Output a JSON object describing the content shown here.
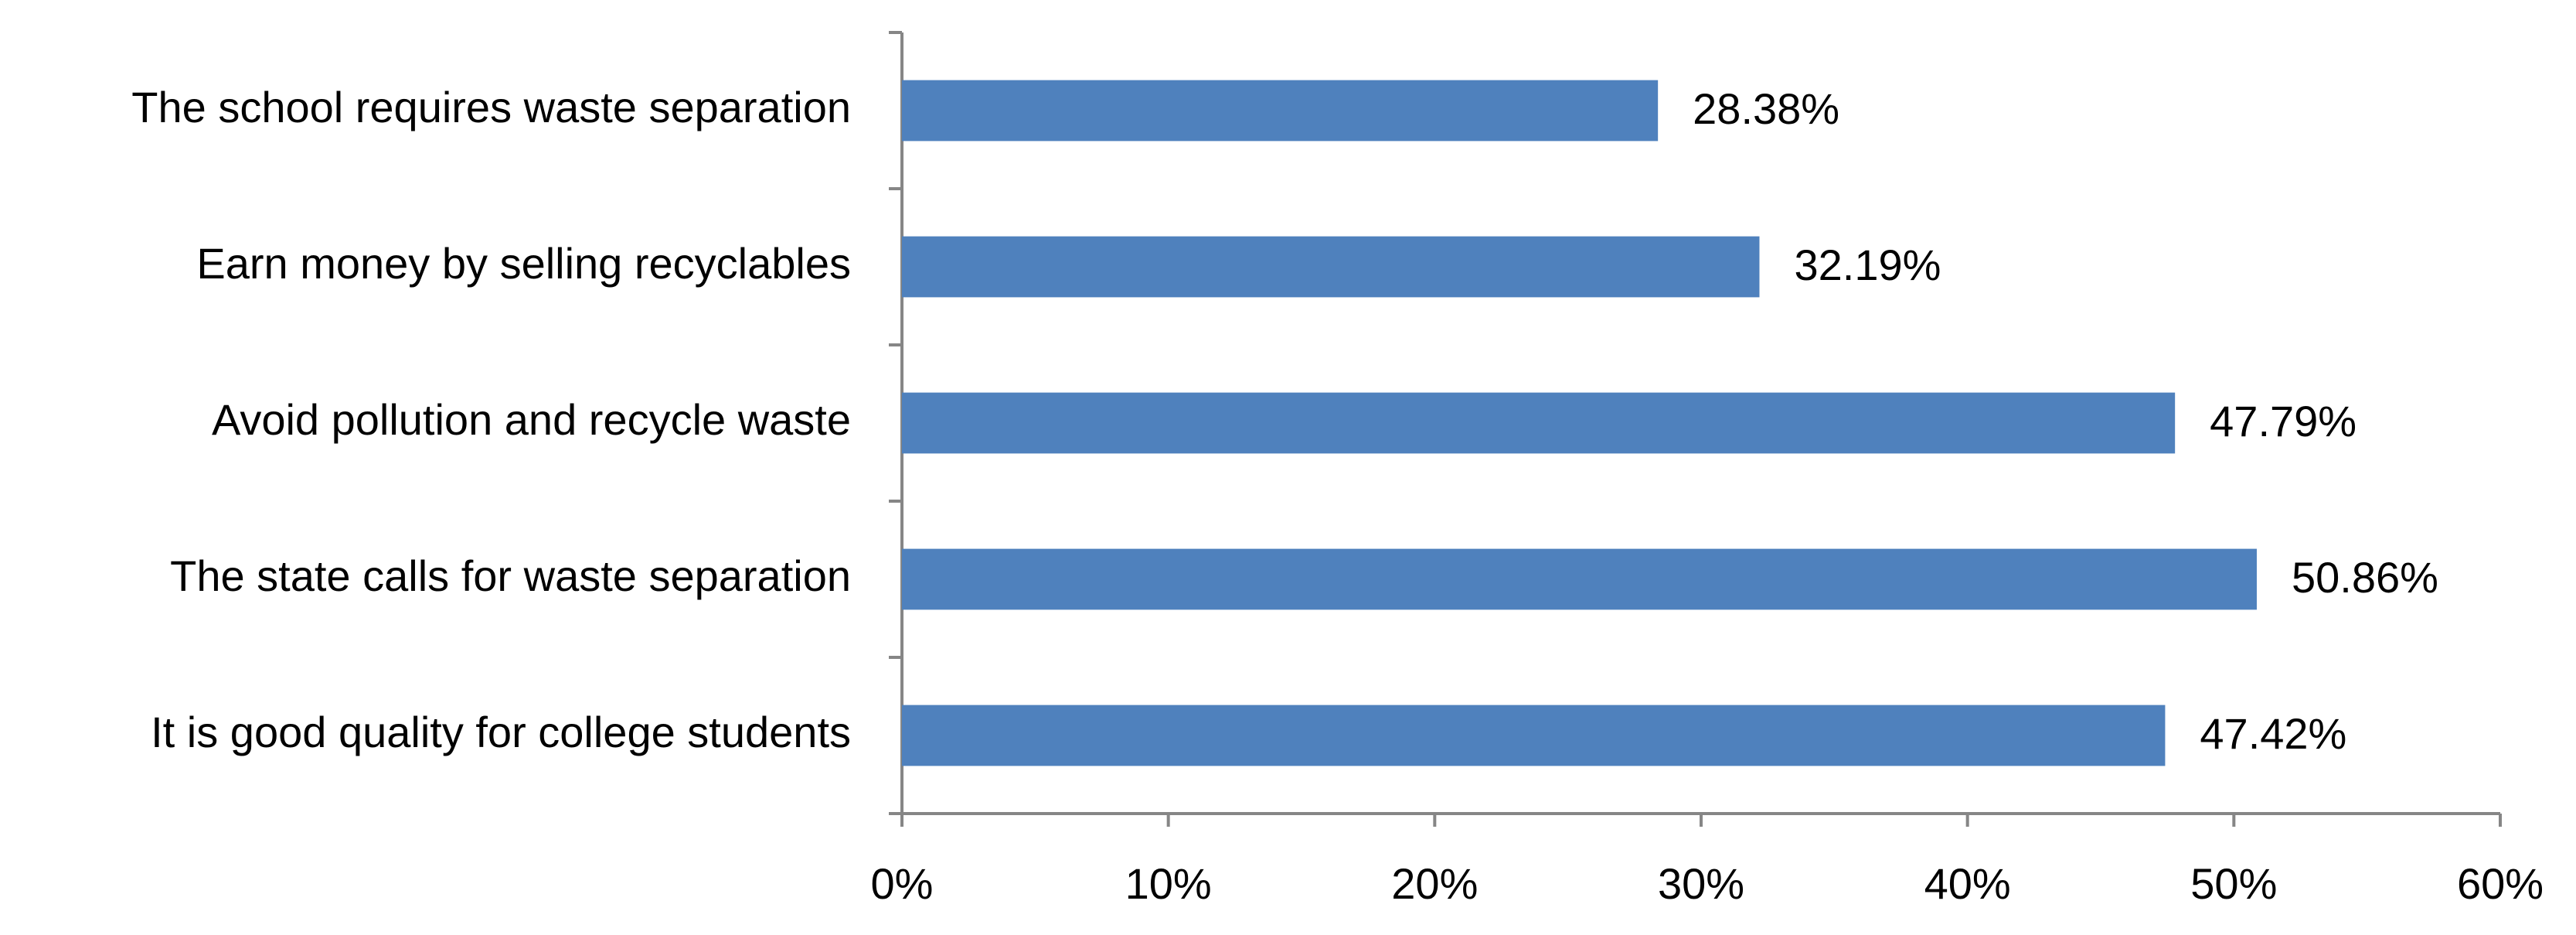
{
  "chart_data": {
    "type": "bar",
    "orientation": "horizontal",
    "categories": [
      "The school requires waste separation",
      "Earn money by selling recyclables",
      "Avoid pollution and recycle waste",
      "The state calls for waste separation",
      "It is good quality for college students"
    ],
    "values": [
      28.38,
      32.19,
      47.79,
      50.86,
      47.42
    ],
    "value_labels": [
      "28.38%",
      "32.19%",
      "47.79%",
      "50.86%",
      "47.42%"
    ],
    "color": "#4f81bd",
    "xlim": [
      0,
      60
    ],
    "xticks": [
      {
        "value": 0,
        "label": "0%"
      },
      {
        "value": 10,
        "label": "10%"
      },
      {
        "value": 20,
        "label": "20%"
      },
      {
        "value": 30,
        "label": "30%"
      },
      {
        "value": 40,
        "label": "40%"
      },
      {
        "value": 50,
        "label": "50%"
      },
      {
        "value": 60,
        "label": "60%"
      }
    ],
    "grid": false
  }
}
